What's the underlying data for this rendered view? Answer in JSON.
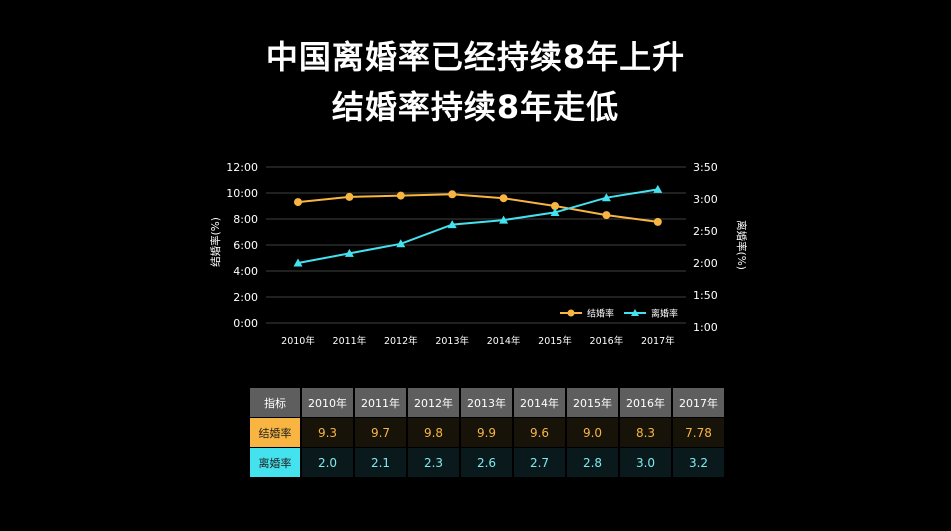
{
  "title_line1": "中国离婚率已经持续8年上升",
  "title_line2": "结婚率持续8年走低",
  "colors": {
    "marriage": "#f8b541",
    "divorce": "#44e2ee",
    "grid": "#555555"
  },
  "chart_data": {
    "type": "line",
    "categories": [
      "2010年",
      "2011年",
      "2012年",
      "2013年",
      "2014年",
      "2015年",
      "2016年",
      "2017年"
    ],
    "left_axis": {
      "label": "结婚率(%)",
      "ticks": [
        "0:00",
        "2:00",
        "4:00",
        "6:00",
        "8:00",
        "10:00",
        "12:00"
      ],
      "range": [
        0,
        12
      ]
    },
    "right_axis": {
      "label": "离婚率(%)",
      "ticks": [
        "1:00",
        "1:50",
        "2:00",
        "2:50",
        "3:00",
        "3:50"
      ],
      "range": [
        1.0,
        3.5
      ]
    },
    "series": [
      {
        "name": "结婚率",
        "axis": "left",
        "marker": "circle",
        "values": [
          9.3,
          9.7,
          9.8,
          9.9,
          9.6,
          9.0,
          8.3,
          7.78
        ]
      },
      {
        "name": "离婚率",
        "axis": "right",
        "marker": "triangle",
        "values": [
          2.0,
          2.15,
          2.3,
          2.6,
          2.67,
          2.79,
          3.02,
          3.15
        ]
      }
    ],
    "legend_position": "bottom-right",
    "grid": "horizontal"
  },
  "table": {
    "corner": "指标",
    "years": [
      "2010年",
      "2011年",
      "2012年",
      "2013年",
      "2014年",
      "2015年",
      "2016年",
      "2017年"
    ],
    "rows": [
      {
        "label": "结婚率",
        "values": [
          "9.3",
          "9.7",
          "9.8",
          "9.9",
          "9.6",
          "9.0",
          "8.3",
          "7.78"
        ]
      },
      {
        "label": "离婚率",
        "values": [
          "2.0",
          "2.1",
          "2.3",
          "2.6",
          "2.7",
          "2.8",
          "3.0",
          "3.2"
        ]
      }
    ]
  }
}
